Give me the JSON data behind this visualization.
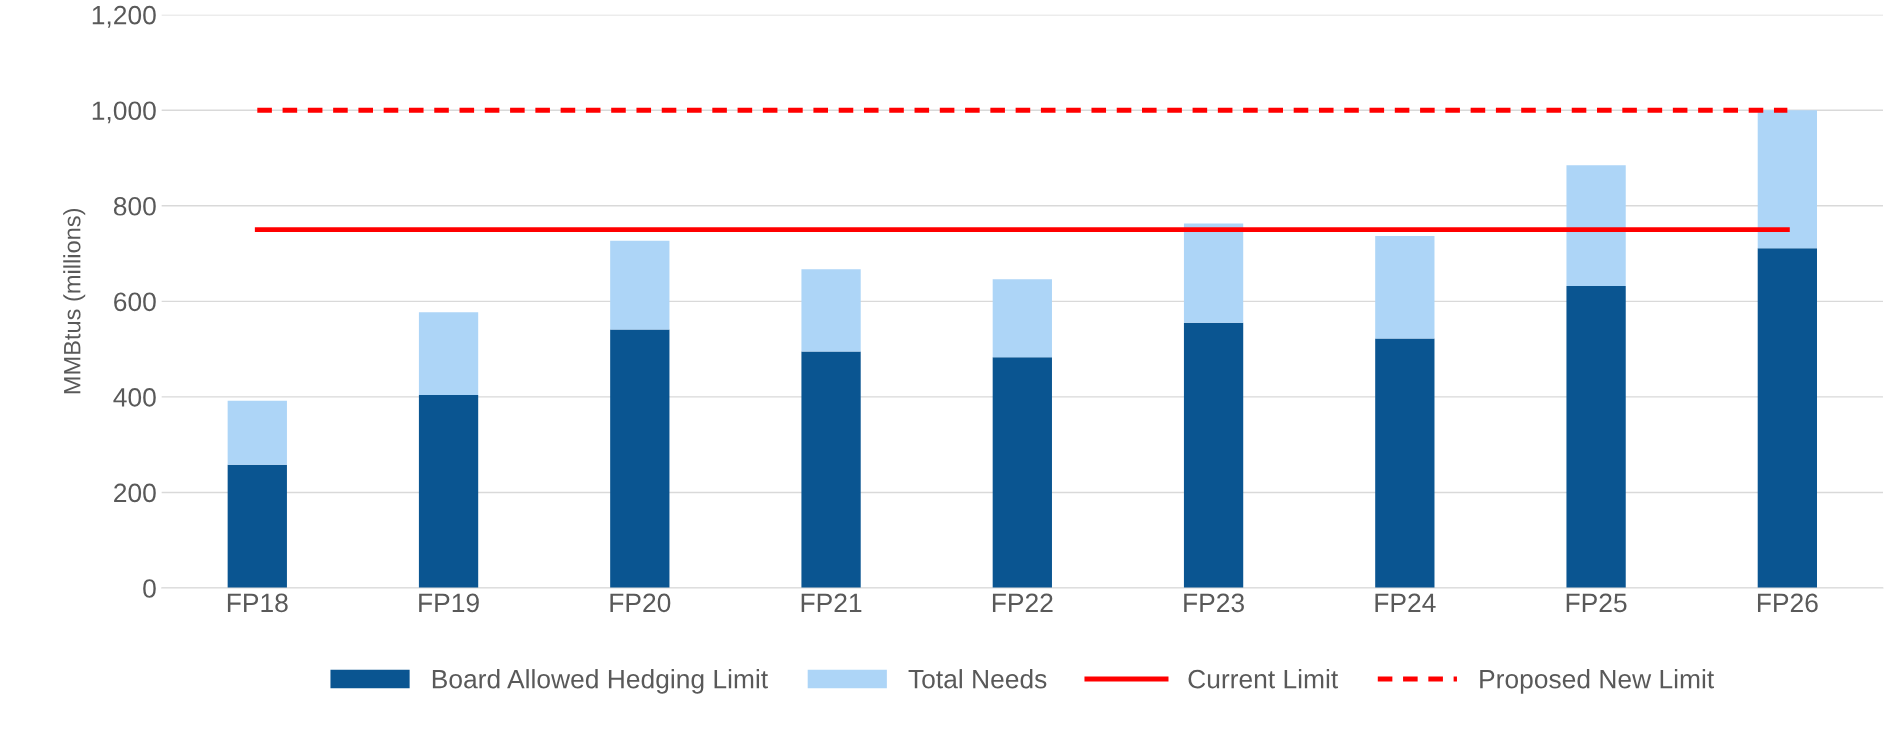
{
  "chart_data": {
    "type": "bar",
    "ylabel": "MMBtus (millions)",
    "categories": [
      "FP18",
      "FP19",
      "FP20",
      "FP21",
      "FP22",
      "FP23",
      "FP24",
      "FP25",
      "FP26"
    ],
    "stacked": true,
    "ylim": [
      0,
      1200
    ],
    "yticks": [
      0,
      200,
      400,
      600,
      800,
      {
        "value": 1000,
        "label": "1,000"
      },
      {
        "value": 1200,
        "label": "1,200"
      }
    ],
    "grid": "y",
    "legend": "bottom",
    "series": [
      {
        "name": "Board Allowed Hedging Limit",
        "color": "#0a5591",
        "values": [
          258,
          404,
          541,
          495,
          483,
          555,
          522,
          632,
          711
        ]
      },
      {
        "name": "Total Needs",
        "color": "#add5f7",
        "values": [
          134,
          173,
          186,
          172,
          163,
          208,
          215,
          253,
          289
        ]
      },
      {
        "name": "Current Limit",
        "type": "line",
        "line_style": "solid",
        "color": "#ff0000",
        "values": [
          750,
          750,
          750,
          750,
          750,
          750,
          750,
          750,
          750
        ]
      },
      {
        "name": "Proposed New Limit",
        "type": "line",
        "line_style": "dashed",
        "color": "#ff0000",
        "values": [
          1000,
          1000,
          1000,
          1000,
          1000,
          1000,
          1000,
          1000,
          1000
        ]
      }
    ]
  }
}
